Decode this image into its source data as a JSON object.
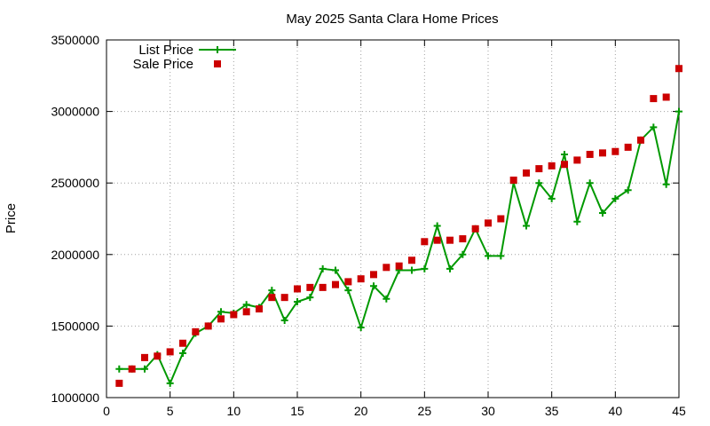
{
  "chart_data": {
    "type": "line",
    "title": "May 2025 Santa Clara Home Prices",
    "xlabel": "",
    "ylabel": "Price",
    "xlim": [
      0,
      45
    ],
    "ylim": [
      1000000,
      3500000
    ],
    "x_ticks": [
      0,
      5,
      10,
      15,
      20,
      25,
      30,
      35,
      40,
      45
    ],
    "y_ticks": [
      1000000,
      1500000,
      2000000,
      2500000,
      3000000,
      3500000
    ],
    "grid": true,
    "legend_position": "top-left",
    "x": [
      1,
      2,
      3,
      4,
      5,
      6,
      7,
      8,
      9,
      10,
      11,
      12,
      13,
      14,
      15,
      16,
      17,
      18,
      19,
      20,
      21,
      22,
      23,
      24,
      25,
      26,
      27,
      28,
      29,
      30,
      31,
      32,
      33,
      34,
      35,
      36,
      37,
      38,
      39,
      40,
      41,
      42,
      43,
      44,
      45
    ],
    "series": [
      {
        "name": "List Price",
        "type": "line",
        "marker": "plus",
        "color": "#009900",
        "values": [
          1200000,
          1200000,
          1200000,
          1300000,
          1100000,
          1310000,
          1450000,
          1500000,
          1600000,
          1590000,
          1650000,
          1630000,
          1750000,
          1540000,
          1670000,
          1700000,
          1900000,
          1890000,
          1750000,
          1490000,
          1780000,
          1690000,
          1890000,
          1890000,
          1900000,
          2200000,
          1900000,
          2000000,
          2180000,
          1990000,
          1990000,
          2500000,
          2200000,
          2500000,
          2390000,
          2700000,
          2230000,
          2500000,
          2290000,
          2390000,
          2450000,
          2800000,
          2890000,
          2490000,
          3000000
        ]
      },
      {
        "name": "Sale Price",
        "type": "scatter",
        "marker": "square",
        "color": "#cc0000",
        "values": [
          1100000,
          1200000,
          1280000,
          1290000,
          1320000,
          1380000,
          1460000,
          1500000,
          1550000,
          1580000,
          1600000,
          1620000,
          1700000,
          1700000,
          1760000,
          1770000,
          1770000,
          1790000,
          1810000,
          1830000,
          1860000,
          1910000,
          1920000,
          1960000,
          2090000,
          2100000,
          2100000,
          2110000,
          2180000,
          2220000,
          2250000,
          2520000,
          2570000,
          2600000,
          2620000,
          2630000,
          2660000,
          2700000,
          2710000,
          2720000,
          2750000,
          2800000,
          3090000,
          3100000,
          3300000
        ]
      }
    ]
  }
}
